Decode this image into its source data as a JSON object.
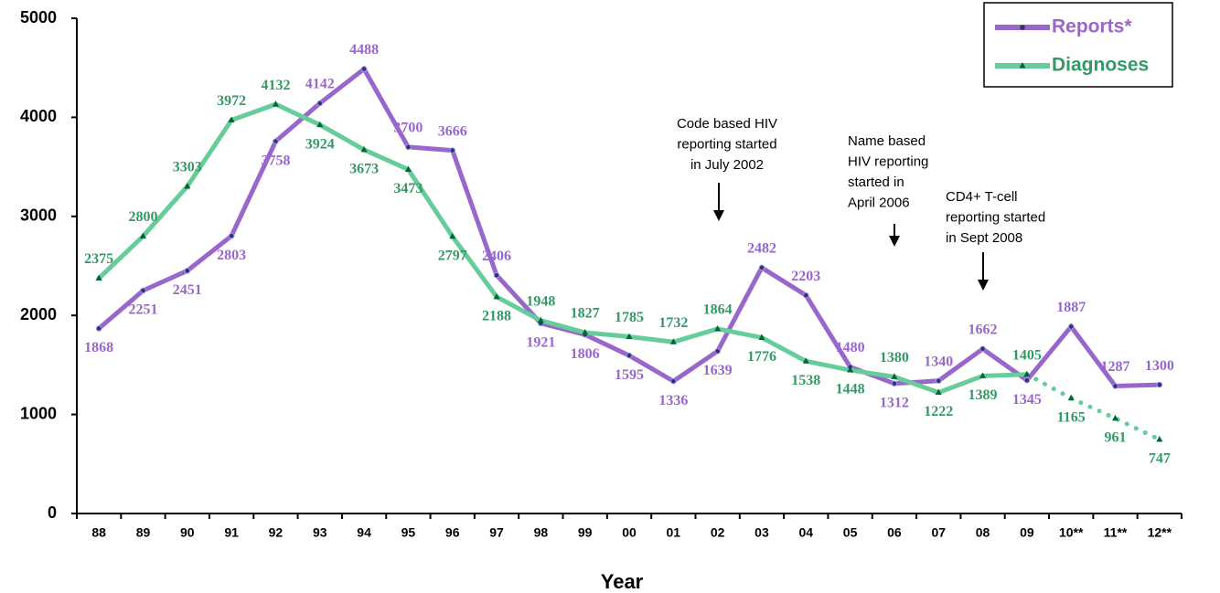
{
  "chart_data": {
    "type": "line",
    "x_label": "Year",
    "categories": [
      "88",
      "89",
      "90",
      "91",
      "92",
      "93",
      "94",
      "95",
      "96",
      "97",
      "98",
      "99",
      "00",
      "01",
      "02",
      "03",
      "04",
      "05",
      "06",
      "07",
      "08",
      "09",
      "10**",
      "11**",
      "12**"
    ],
    "series": [
      {
        "name": "Reports*",
        "color": "#9966cc",
        "label_color": "#9966cc",
        "marker": "circle",
        "values": [
          1868,
          2251,
          2451,
          2803,
          3758,
          4142,
          4488,
          3700,
          3666,
          2406,
          1921,
          1806,
          1595,
          1336,
          1639,
          2482,
          2203,
          1480,
          1312,
          1340,
          1662,
          1345,
          1887,
          1287,
          1300
        ]
      },
      {
        "name": "Diagnoses",
        "color": "#66cc99",
        "label_color": "#339966",
        "marker": "triangle",
        "dotted_after": 21,
        "values": [
          2375,
          2800,
          3303,
          3972,
          4132,
          3924,
          3673,
          3473,
          2797,
          2188,
          1948,
          1827,
          1785,
          1732,
          1864,
          1776,
          1538,
          1448,
          1380,
          1222,
          1389,
          1405,
          1165,
          961,
          747
        ]
      }
    ],
    "ylim": [
      0,
      5000
    ],
    "yticks": [
      0,
      1000,
      2000,
      3000,
      4000,
      5000
    ],
    "legend": "top-right",
    "annotations": [
      {
        "lines": [
          "Code based HIV",
          "reporting started",
          "in July 2002"
        ]
      },
      {
        "lines": [
          "Name based",
          "HIV reporting",
          "started in",
          "April 2006"
        ]
      },
      {
        "lines": [
          "CD4+ T-cell",
          "reporting started",
          "in Sept 2008"
        ]
      }
    ]
  }
}
